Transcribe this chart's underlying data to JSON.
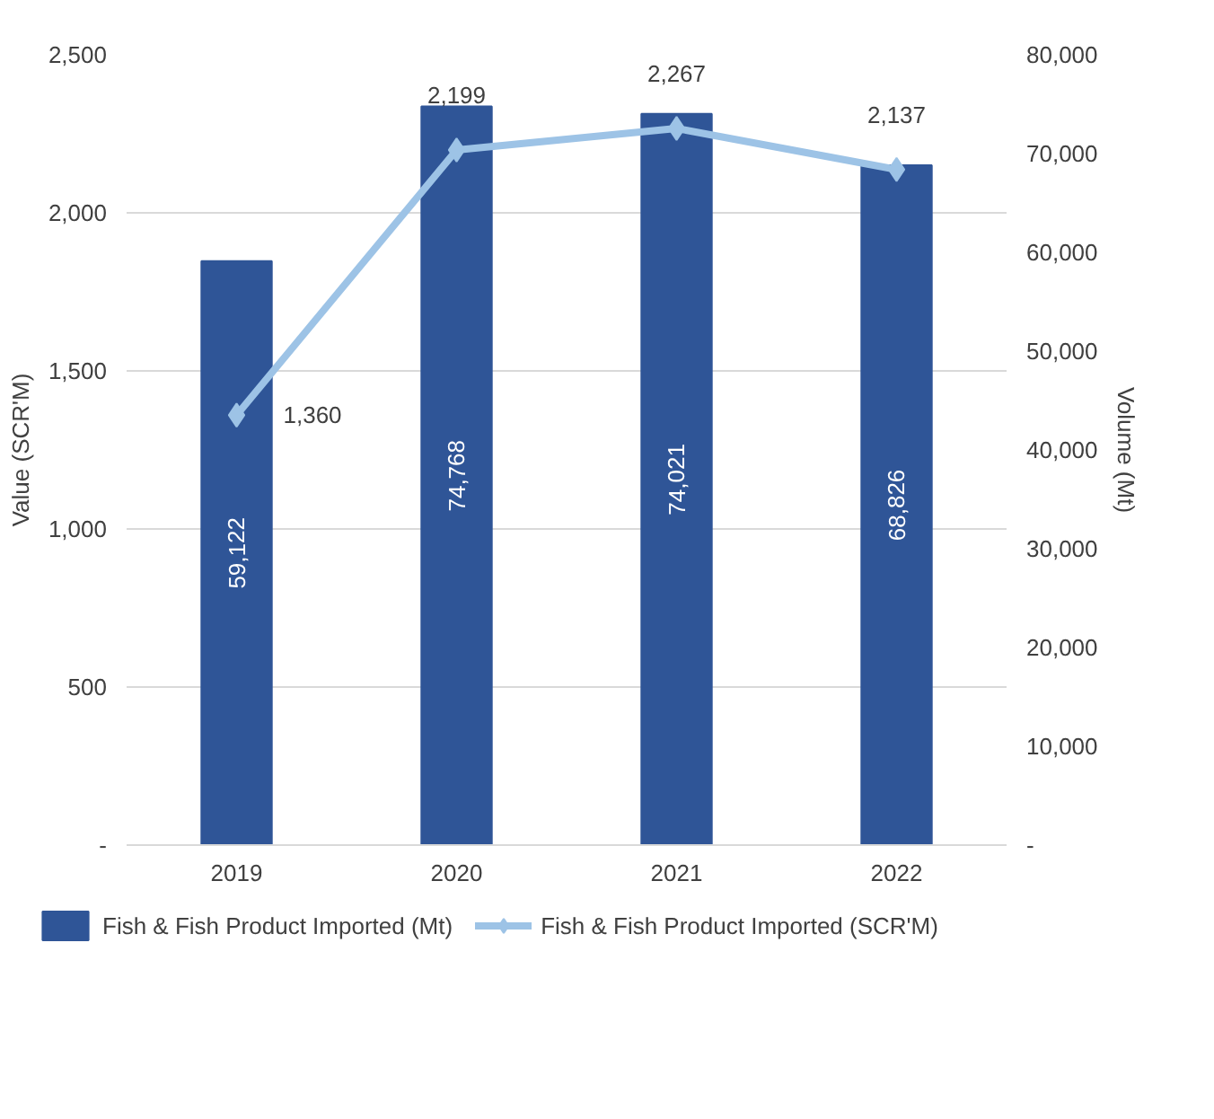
{
  "chart_data": {
    "type": "bar",
    "categories": [
      "2019",
      "2020",
      "2021",
      "2022"
    ],
    "series": [
      {
        "name": "Fish & Fish Product Imported (Mt)",
        "axis": "y2",
        "color": "#2f5597",
        "values": [
          59122,
          74768,
          74021,
          68826
        ],
        "value_labels": [
          "59,122",
          "74,768",
          "74,021",
          "68,826"
        ]
      },
      {
        "name": "Fish & Fish Product Imported (SCR'M)",
        "type": "line",
        "axis": "y",
        "color": "#9dc3e6",
        "marker": "diamond",
        "line_style": "solid",
        "values": [
          1360,
          2199,
          2267,
          2137
        ],
        "value_labels": [
          "1,360",
          "2,199",
          "2,267",
          "2,137"
        ]
      }
    ],
    "ylabel": "Value (SCR'M)",
    "y2label": "Volume (Mt)",
    "ylim": [
      0,
      2500
    ],
    "yticks": [
      {
        "value": 0,
        "label": "-"
      },
      500,
      {
        "value": 1000,
        "label": "1,000"
      },
      {
        "value": 1500,
        "label": "1,500"
      },
      {
        "value": 2000,
        "label": "2,000"
      },
      {
        "value": 2500,
        "label": "2,500"
      }
    ],
    "y2lim": [
      0,
      80000
    ],
    "y2ticks": [
      {
        "value": 0,
        "label": "-"
      },
      {
        "value": 10000,
        "label": "10,000"
      },
      {
        "value": 20000,
        "label": "20,000"
      },
      {
        "value": 30000,
        "label": "30,000"
      },
      {
        "value": 40000,
        "label": "40,000"
      },
      {
        "value": 50000,
        "label": "50,000"
      },
      {
        "value": 60000,
        "label": "60,000"
      },
      {
        "value": 70000,
        "label": "70,000"
      },
      {
        "value": 80000,
        "label": "80,000"
      }
    ],
    "grid": "y",
    "legend": "bottom"
  }
}
